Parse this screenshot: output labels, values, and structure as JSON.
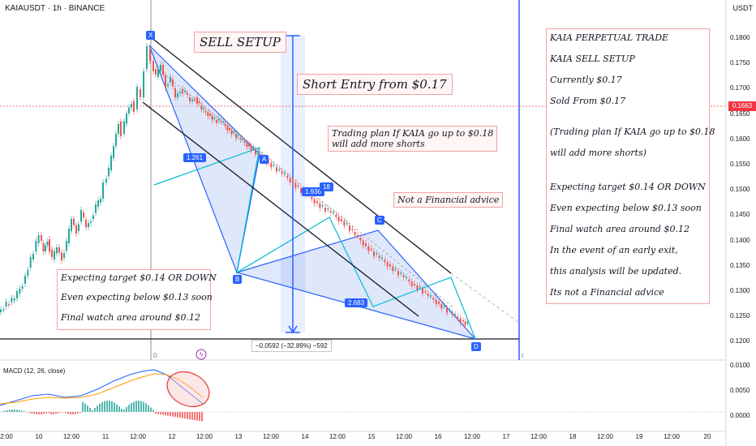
{
  "header": {
    "symbol_line": "KAIAUSDT · 1h · BINANCE",
    "currency": "USDT"
  },
  "price_axis": {
    "labels": [
      "0.1800",
      "0.1750",
      "0.1700",
      "0.1650",
      "0.1600",
      "0.1550",
      "0.1500",
      "0.1450",
      "0.1400",
      "0.1350",
      "0.1300",
      "0.1250",
      "0.1200"
    ],
    "current_price": "0.1663",
    "current_color": "#f23645"
  },
  "macd_axis": {
    "labels": [
      "0.0100",
      "0.0050",
      "0.0000"
    ]
  },
  "time_axis": {
    "labels": [
      "2:00",
      "10",
      "12:00",
      "11",
      "12:00",
      "12",
      "12:00",
      "13",
      "12:00",
      "14",
      "12:00",
      "15",
      "12:00",
      "16",
      "12:00",
      "17",
      "12:00",
      "18",
      "12:00",
      "19",
      "12:00",
      "20"
    ]
  },
  "annotations": {
    "sell_setup": "SELL SETUP",
    "short_entry": "Short Entry from $0.17",
    "trading_plan": [
      "Trading plan If KAIA go up to $0.18",
      "will add more shorts"
    ],
    "not_advice": "Not a Financial advice",
    "left_box": [
      "Expecting target $0.14 OR DOWN",
      "Even expecting below $0.13 soon",
      "Final watch area around $0.12"
    ],
    "right_box": [
      "KAIA PERPETUAL TRADE",
      "KAIA SELL SETUP",
      "Currently $0.17",
      "Sold From $0.17",
      "(Trading plan If KAIA go up to $0.18",
      "will add more shorts)",
      "Expecting target $0.14 OR DOWN",
      "Even expecting below $0.13 soon",
      "Final watch area around $0.12",
      "In the event of an early exit,",
      "this analysis will be updated.",
      "Its not a Financial advice"
    ]
  },
  "pattern": {
    "points": [
      "X",
      "A",
      "B",
      "C",
      "D"
    ],
    "ratios": [
      "1.261",
      "1.936",
      "2.683"
    ],
    "partial_label": "18"
  },
  "measure": "−0.0592 (−32.89%) −592",
  "macd": {
    "label": "MACD (12, 26, close)"
  },
  "misc": {
    "zero_marker": "0",
    "tick_marker": "t"
  },
  "colors": {
    "up": "#26a69a",
    "down": "#ef5350",
    "pattern": "#2962ff",
    "pattern_fill": "#c5d3f5",
    "channel": "#131722",
    "macd_line": "#2962ff",
    "signal_line": "#ff9800"
  }
}
